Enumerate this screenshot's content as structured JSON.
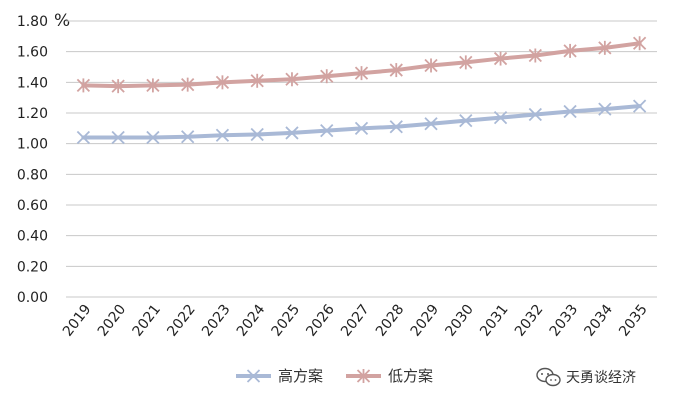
{
  "chart_data": {
    "type": "line",
    "unit_label": "%",
    "ylim": [
      0,
      1.8
    ],
    "yticks": [
      "0.00",
      "0.20",
      "0.40",
      "0.60",
      "0.80",
      "1.00",
      "1.20",
      "1.40",
      "1.60",
      "1.80"
    ],
    "grid": "horizontal",
    "legend_position": "bottom",
    "categories": [
      "2019",
      "2020",
      "2021",
      "2022",
      "2023",
      "2024",
      "2025",
      "2026",
      "2027",
      "2028",
      "2029",
      "2030",
      "2031",
      "2032",
      "2033",
      "2034",
      "2035"
    ],
    "series": [
      {
        "name": "高方案",
        "color": "#a9b9d6",
        "marker": "x",
        "values": [
          1.04,
          1.04,
          1.04,
          1.045,
          1.055,
          1.06,
          1.07,
          1.085,
          1.1,
          1.11,
          1.13,
          1.15,
          1.17,
          1.19,
          1.21,
          1.225,
          1.245
        ]
      },
      {
        "name": "低方案",
        "color": "#d2a3a1",
        "marker": "asterisk",
        "values": [
          1.38,
          1.375,
          1.38,
          1.385,
          1.4,
          1.41,
          1.42,
          1.44,
          1.46,
          1.48,
          1.51,
          1.53,
          1.555,
          1.575,
          1.605,
          1.625,
          1.655
        ]
      }
    ]
  },
  "watermark": {
    "text": "天勇谈经济",
    "icon": "wechat-icon"
  }
}
